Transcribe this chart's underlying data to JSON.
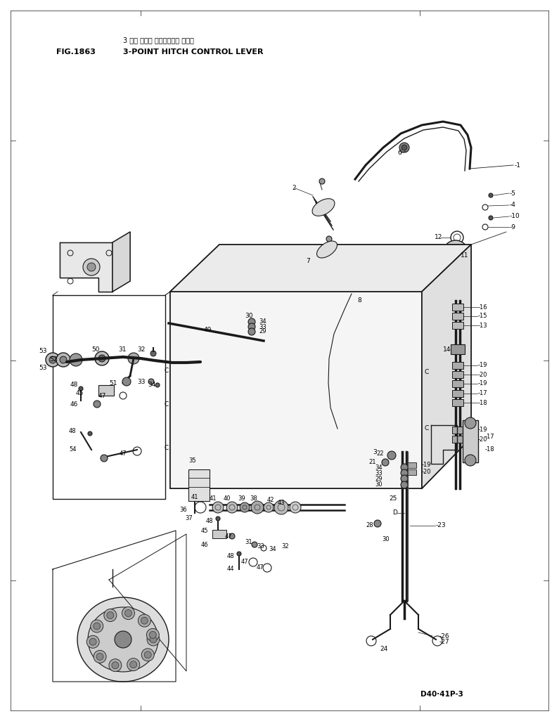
{
  "title_japanese": "3 デン ヒッチ コントロール レバー",
  "title_english": "3-POINT HITCH CONTROL LEVER",
  "fig_label": "FIG.1863",
  "part_number": "D40·41P-3",
  "bg_color": "#ffffff",
  "line_color": "#1a1a1a",
  "fig_width": 7.95,
  "fig_height": 10.26,
  "dpi": 100
}
